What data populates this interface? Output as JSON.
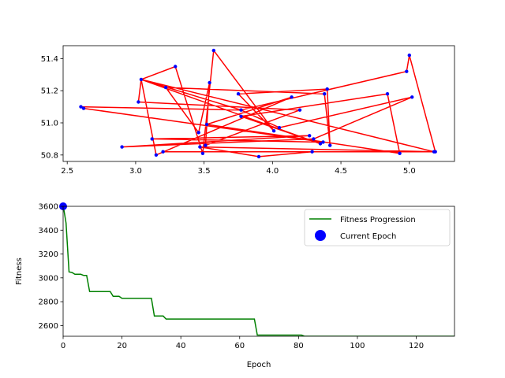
{
  "chart_data": [
    {
      "type": "scatter",
      "description_role": "route",
      "xlim": [
        2.47,
        5.33
      ],
      "ylim": [
        50.76,
        51.48
      ],
      "x_ticks": [
        2.5,
        3.0,
        3.5,
        4.0,
        4.5,
        5.0
      ],
      "x_tick_labels": [
        "2.5",
        "3.0",
        "3.5",
        "4.0",
        "4.5",
        "5.0"
      ],
      "y_ticks": [
        50.8,
        51.0,
        51.2,
        51.4
      ],
      "y_tick_labels": [
        "50.8",
        "51.0",
        "51.2",
        "51.4"
      ],
      "grid": false,
      "colors": {
        "points": "#0000ff",
        "route": "#ff0000"
      },
      "points": [
        [
          3.04,
          51.27
        ],
        [
          3.29,
          51.35
        ],
        [
          3.57,
          51.45
        ],
        [
          3.02,
          51.13
        ],
        [
          3.22,
          51.22
        ],
        [
          3.54,
          51.25
        ],
        [
          3.75,
          51.18
        ],
        [
          3.77,
          51.08
        ],
        [
          4.14,
          51.16
        ],
        [
          4.2,
          51.08
        ],
        [
          4.05,
          50.97
        ],
        [
          4.01,
          50.95
        ],
        [
          3.77,
          51.04
        ],
        [
          3.51,
          50.86
        ],
        [
          3.49,
          50.81
        ],
        [
          3.47,
          50.85
        ],
        [
          3.46,
          50.94
        ],
        [
          3.52,
          50.99
        ],
        [
          3.12,
          50.9
        ],
        [
          3.15,
          50.8
        ],
        [
          3.2,
          50.82
        ],
        [
          2.9,
          50.85
        ],
        [
          2.6,
          51.1
        ],
        [
          2.62,
          51.09
        ],
        [
          3.9,
          50.79
        ],
        [
          4.27,
          50.92
        ],
        [
          4.29,
          50.82
        ],
        [
          4.3,
          50.9
        ],
        [
          4.35,
          50.87
        ],
        [
          4.37,
          50.88
        ],
        [
          4.4,
          51.21
        ],
        [
          4.38,
          51.18
        ],
        [
          4.42,
          50.86
        ],
        [
          4.84,
          51.18
        ],
        [
          4.93,
          50.81
        ],
        [
          4.98,
          51.32
        ],
        [
          5.0,
          51.42
        ],
        [
          5.02,
          51.16
        ],
        [
          5.18,
          50.82
        ],
        [
          5.19,
          50.82
        ]
      ],
      "route": [
        [
          3.04,
          51.27
        ],
        [
          3.29,
          51.35
        ],
        [
          3.49,
          50.81
        ],
        [
          3.57,
          51.45
        ],
        [
          4.01,
          50.95
        ],
        [
          3.75,
          51.18
        ],
        [
          4.4,
          51.21
        ],
        [
          4.42,
          50.86
        ],
        [
          4.38,
          51.18
        ],
        [
          3.22,
          51.22
        ],
        [
          3.46,
          50.94
        ],
        [
          3.54,
          51.25
        ],
        [
          3.51,
          50.86
        ],
        [
          4.2,
          51.08
        ],
        [
          3.02,
          51.13
        ],
        [
          3.04,
          51.27
        ],
        [
          4.35,
          50.87
        ],
        [
          3.77,
          51.04
        ],
        [
          4.84,
          51.18
        ],
        [
          4.93,
          50.81
        ],
        [
          3.52,
          50.99
        ],
        [
          4.14,
          51.16
        ],
        [
          3.15,
          50.8
        ],
        [
          3.04,
          51.27
        ],
        [
          5.18,
          50.82
        ],
        [
          3.2,
          50.82
        ],
        [
          4.29,
          50.82
        ],
        [
          3.9,
          50.79
        ],
        [
          3.47,
          50.85
        ],
        [
          5.19,
          50.82
        ],
        [
          5.0,
          51.42
        ],
        [
          4.98,
          51.32
        ],
        [
          3.77,
          51.08
        ],
        [
          2.6,
          51.1
        ],
        [
          2.62,
          51.09
        ],
        [
          4.37,
          50.88
        ],
        [
          3.12,
          50.9
        ],
        [
          4.27,
          50.92
        ],
        [
          2.9,
          50.85
        ],
        [
          4.3,
          50.9
        ],
        [
          5.02,
          51.16
        ],
        [
          4.05,
          50.97
        ],
        [
          3.77,
          51.08
        ],
        [
          3.04,
          51.27
        ]
      ]
    },
    {
      "type": "line",
      "xlabel": "Epoch",
      "ylabel": "Fitness",
      "xlim": [
        0,
        133
      ],
      "ylim": [
        2510,
        3600
      ],
      "x_ticks": [
        0,
        20,
        40,
        60,
        80,
        100,
        120
      ],
      "x_tick_labels": [
        "0",
        "20",
        "40",
        "60",
        "80",
        "100",
        "120"
      ],
      "y_ticks": [
        2600,
        2800,
        3000,
        3200,
        3400,
        3600
      ],
      "y_tick_labels": [
        "2600",
        "2800",
        "3000",
        "3200",
        "3400",
        "3600"
      ],
      "grid": false,
      "legend": {
        "placement": "upper right",
        "entries": [
          {
            "label": "Fitness Progression",
            "color": "#008000",
            "marker": "line"
          },
          {
            "label": "Current Epoch",
            "color": "#0000ff",
            "marker": "circle"
          }
        ]
      },
      "series": [
        {
          "name": "Fitness Progression",
          "color": "#008000",
          "x": [
            0,
            1,
            2,
            3,
            4,
            5,
            6,
            7,
            8,
            9,
            16,
            17,
            19,
            20,
            30,
            31,
            34,
            35,
            65,
            66,
            81,
            82,
            133
          ],
          "y": [
            3610,
            3460,
            3050,
            3045,
            3030,
            3030,
            3030,
            3020,
            3020,
            2885,
            2885,
            2845,
            2845,
            2828,
            2828,
            2680,
            2680,
            2655,
            2655,
            2520,
            2520,
            2510,
            2510
          ]
        }
      ],
      "current_epoch": {
        "x": 0,
        "y": 3610,
        "color": "#0000ff"
      }
    }
  ]
}
